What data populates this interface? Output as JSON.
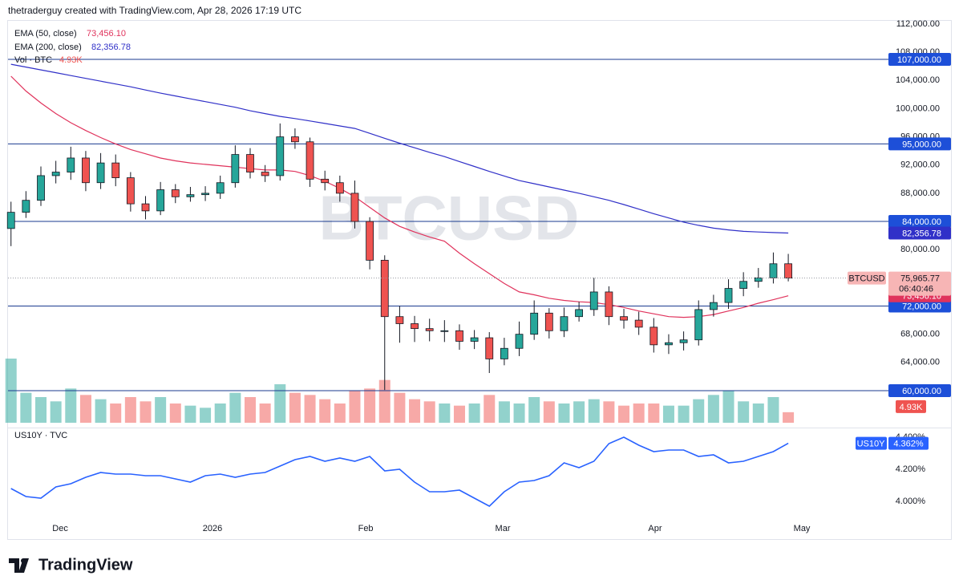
{
  "header": {
    "text": "thetraderguy created with TradingView.com, Apr 28, 2026 17:19 UTC"
  },
  "footer": {
    "logo": "TradingView"
  },
  "chart_data": [
    {
      "type": "candlestick",
      "symbol": "BTCUSD",
      "open": [
        83000,
        85300,
        87000,
        90500,
        91000,
        93000,
        89500,
        92300,
        90200,
        86500,
        85500,
        88500,
        87500,
        87800,
        88000,
        89500,
        93500,
        91000,
        90500,
        96000,
        95300,
        90000,
        89500,
        88000,
        84000,
        78500,
        70500,
        69500,
        68800,
        68500,
        68500,
        67000,
        67500,
        64500,
        66000,
        68000,
        71000,
        68500,
        70500,
        71500,
        74000,
        70500,
        70000,
        69000,
        66500,
        66800,
        67200,
        71500,
        72500,
        74500,
        75500,
        76000,
        78000
      ],
      "high": [
        86800,
        88300,
        91800,
        92600,
        94600,
        94000,
        93700,
        93500,
        91000,
        87600,
        89600,
        89300,
        88900,
        89000,
        90500,
        94800,
        94400,
        92000,
        97900,
        97200,
        95900,
        91200,
        90500,
        89800,
        84600,
        79200,
        72000,
        70600,
        70200,
        70000,
        69400,
        68600,
        68300,
        67500,
        69800,
        72800,
        71700,
        71800,
        72600,
        76000,
        74800,
        71600,
        71200,
        70300,
        68000,
        68400,
        72800,
        73600,
        75800,
        76800,
        77400,
        79600,
        79400
      ],
      "low": [
        80500,
        84500,
        86200,
        89400,
        89900,
        88300,
        88600,
        89000,
        85400,
        84300,
        84900,
        86600,
        86800,
        86900,
        87200,
        88800,
        90100,
        89600,
        89800,
        94300,
        88900,
        88400,
        86800,
        83000,
        77200,
        60100,
        66800,
        66900,
        67000,
        66900,
        65800,
        65900,
        62500,
        63600,
        64900,
        67200,
        67400,
        67600,
        69800,
        70600,
        69300,
        68800,
        67900,
        65400,
        65200,
        65700,
        66400,
        70500,
        71600,
        73400,
        74600,
        75200,
        75500
      ],
      "close": [
        85300,
        87000,
        90500,
        91000,
        93000,
        89500,
        92300,
        90200,
        86500,
        85500,
        88500,
        87500,
        87800,
        88000,
        89500,
        93500,
        91000,
        90500,
        96000,
        95300,
        90000,
        89500,
        88000,
        84000,
        78500,
        70500,
        69500,
        68800,
        68500,
        68500,
        67000,
        67500,
        64500,
        66000,
        68000,
        71000,
        68500,
        70500,
        71500,
        74000,
        70500,
        70000,
        69000,
        66500,
        66800,
        67200,
        71500,
        72500,
        74500,
        75500,
        76000,
        78000,
        75965.77
      ],
      "up_color": "#26a69a",
      "down_color": "#ef5350",
      "last_price": {
        "value": 75965.77,
        "label": "75,965.77"
      },
      "countdown": "06:40:46",
      "series": [
        {
          "name": "EMA (50, close)",
          "color": "#e0335c",
          "values": [
            104600,
            102500,
            100800,
            99300,
            98000,
            96900,
            95900,
            95000,
            94200,
            93600,
            93000,
            92600,
            92300,
            92100,
            91900,
            91700,
            91500,
            91300,
            91300,
            91100,
            90500,
            89700,
            88700,
            87500,
            86000,
            84500,
            83300,
            82500,
            81800,
            81200,
            79500,
            78000,
            76600,
            75200,
            74000,
            73600,
            73100,
            72800,
            72600,
            72500,
            72200,
            71800,
            71300,
            70900,
            70500,
            70400,
            70500,
            70800,
            71300,
            71800,
            72400,
            72900,
            73456.1
          ],
          "last_value": {
            "value": 73456.1,
            "label": "73,456.10"
          }
        },
        {
          "name": "EMA (200, close)",
          "color": "#3030c8",
          "values": [
            106300,
            105900,
            105500,
            105100,
            104700,
            104300,
            103900,
            103500,
            103100,
            102650,
            102200,
            101800,
            101400,
            101000,
            100600,
            100200,
            99700,
            99300,
            98900,
            98600,
            98250,
            97900,
            97550,
            97200,
            96500,
            95800,
            95100,
            94450,
            93800,
            93200,
            92500,
            91800,
            91100,
            90450,
            89800,
            89350,
            88900,
            88450,
            88000,
            87500,
            87000,
            86400,
            85750,
            85100,
            84500,
            83900,
            83450,
            83050,
            82800,
            82600,
            82500,
            82420,
            82356.78
          ],
          "last_value": {
            "value": 82356.78,
            "label": "82,356.78"
          }
        }
      ],
      "volume": {
        "name": "Vol · BTC",
        "ylim": [
          0,
          30000
        ],
        "values": [
          30000,
          14000,
          12000,
          10000,
          16000,
          13000,
          11000,
          9000,
          12000,
          10000,
          12000,
          9000,
          8000,
          7000,
          9000,
          14000,
          12000,
          9000,
          18000,
          14000,
          13000,
          11000,
          9000,
          15000,
          16000,
          20000,
          14000,
          11000,
          10000,
          9000,
          8000,
          9000,
          13000,
          10000,
          9000,
          12000,
          10000,
          9000,
          10000,
          11000,
          10000,
          8000,
          9000,
          9000,
          8000,
          8000,
          11000,
          13000,
          15000,
          10000,
          9000,
          12000,
          4930
        ],
        "last_value": {
          "value": 4930,
          "label": "4.93K"
        }
      },
      "hlines": [
        {
          "value": 107000,
          "label": "107,000.00"
        },
        {
          "value": 95000,
          "label": "95,000.00"
        },
        {
          "value": 84000,
          "label": "84,000.00"
        },
        {
          "value": 72000,
          "label": "72,000.00"
        },
        {
          "value": 60000,
          "label": "60,000.00"
        }
      ],
      "hline_color": "#1d4fd8",
      "xlim": [
        -0.2,
        58.54
      ],
      "xticks": [
        {
          "value": 3.29,
          "label": "Dec"
        },
        {
          "value": 13.48,
          "label": "2026"
        },
        {
          "value": 23.73,
          "label": "Feb"
        },
        {
          "value": 32.9,
          "label": "Mar"
        },
        {
          "value": 43.09,
          "label": "Apr"
        },
        {
          "value": 52.91,
          "label": "May"
        }
      ],
      "ylim": [
        55445,
        112000
      ],
      "yticks": [
        {
          "value": 112000,
          "label": "112,000.00"
        },
        {
          "value": 108000,
          "label": "108,000.00"
        },
        {
          "value": 104000,
          "label": "104,000.00"
        },
        {
          "value": 100000,
          "label": "100,000.00"
        },
        {
          "value": 96000,
          "label": "96,000.00"
        },
        {
          "value": 92000,
          "label": "92,000.00"
        },
        {
          "value": 88000,
          "label": "88,000.00"
        },
        {
          "value": 80000,
          "label": "80,000.00"
        },
        {
          "value": 68000,
          "label": "68,000.00"
        },
        {
          "value": 64000,
          "label": "64,000.00"
        }
      ]
    },
    {
      "type": "line",
      "title": "US10Y · TVC",
      "symbol": "US10Y",
      "series": [
        {
          "name": "US10Y",
          "color": "#2962ff",
          "values": [
            4.08,
            4.03,
            4.02,
            4.09,
            4.11,
            4.15,
            4.18,
            4.17,
            4.17,
            4.16,
            4.16,
            4.14,
            4.12,
            4.16,
            4.17,
            4.15,
            4.17,
            4.18,
            4.22,
            4.26,
            4.28,
            4.25,
            4.27,
            4.25,
            4.28,
            4.19,
            4.2,
            4.12,
            4.06,
            4.06,
            4.07,
            4.02,
            3.97,
            4.06,
            4.12,
            4.13,
            4.16,
            4.24,
            4.21,
            4.25,
            4.36,
            4.4,
            4.35,
            4.31,
            4.32,
            4.32,
            4.28,
            4.29,
            4.24,
            4.25,
            4.28,
            4.31,
            4.362
          ]
        }
      ],
      "last_value": {
        "value": 4.362,
        "label": "4.362%"
      },
      "ylim": [
        3.775,
        4.46
      ],
      "yticks": [
        {
          "value": 4.4,
          "label": "4.400%"
        },
        {
          "value": 4.2,
          "label": "4.200%"
        },
        {
          "value": 4.0,
          "label": "4.000%"
        }
      ]
    }
  ]
}
